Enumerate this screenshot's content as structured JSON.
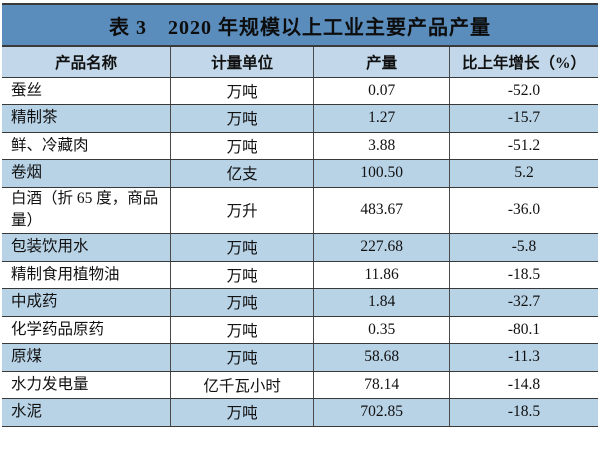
{
  "table": {
    "title": "表 3　2020 年规模以上工业主要产品产量",
    "columns": [
      "产品名称",
      "计量单位",
      "产量",
      "比上年增长（%）"
    ],
    "rows": [
      {
        "name": "蚕丝",
        "unit": "万吨",
        "output": "0.07",
        "growth": "-52.0"
      },
      {
        "name": "精制茶",
        "unit": "万吨",
        "output": "1.27",
        "growth": "-15.7"
      },
      {
        "name": "鲜、冷藏肉",
        "unit": "万吨",
        "output": "3.88",
        "growth": "-51.2"
      },
      {
        "name": "卷烟",
        "unit": "亿支",
        "output": "100.50",
        "growth": "5.2"
      },
      {
        "name": "白酒（折 65 度，商品量）",
        "unit": "万升",
        "output": "483.67",
        "growth": "-36.0"
      },
      {
        "name": "包装饮用水",
        "unit": "万吨",
        "output": "227.68",
        "growth": "-5.8"
      },
      {
        "name": "精制食用植物油",
        "unit": "万吨",
        "output": "11.86",
        "growth": "-18.5"
      },
      {
        "name": "中成药",
        "unit": "万吨",
        "output": "1.84",
        "growth": "-32.7"
      },
      {
        "name": "化学药品原药",
        "unit": "万吨",
        "output": "0.35",
        "growth": "-80.1"
      },
      {
        "name": "原煤",
        "unit": "万吨",
        "output": "58.68",
        "growth": "-11.3"
      },
      {
        "name": "水力发电量",
        "unit": "亿千瓦小时",
        "output": "78.14",
        "growth": "-14.8"
      },
      {
        "name": "水泥",
        "unit": "万吨",
        "output": "702.85",
        "growth": "-18.5"
      }
    ]
  },
  "colors": {
    "title_band": "#5a8cbc",
    "header_row": "#c2d8ea",
    "stripe_row": "#b8d2e6",
    "border_dark": "#3a3a3a",
    "border_mid": "#4a4a4a"
  }
}
